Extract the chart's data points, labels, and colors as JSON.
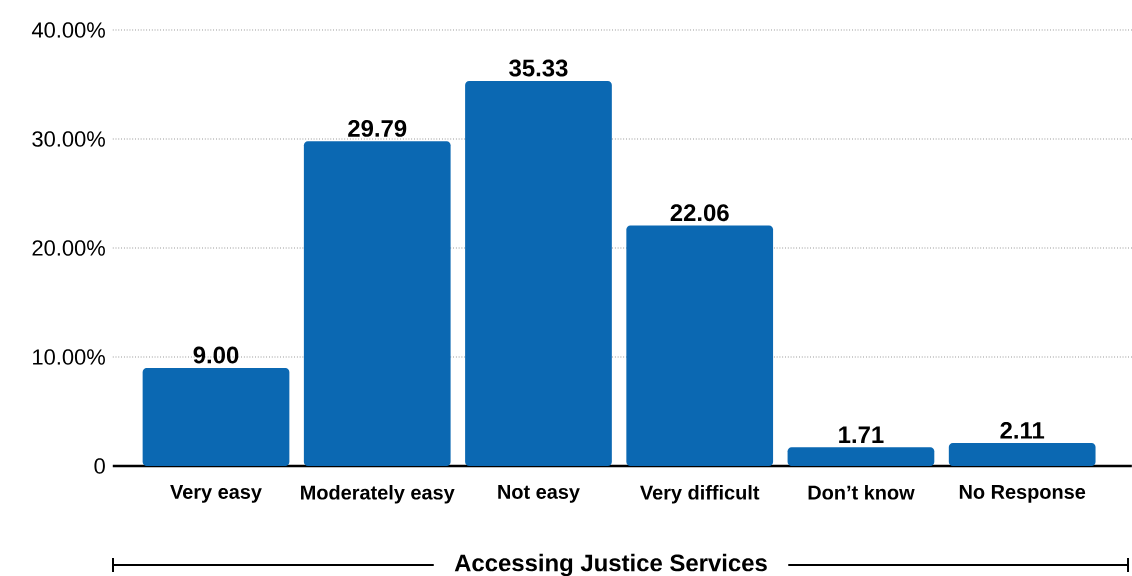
{
  "chart_data": {
    "type": "bar",
    "xlabel": "Accessing Justice Services",
    "categories": [
      "Very easy",
      "Moderately easy",
      "Not easy",
      "Very difficult",
      "Don’t know",
      "No Response"
    ],
    "values": [
      9.0,
      29.79,
      35.33,
      22.06,
      1.71,
      2.11
    ],
    "value_labels": [
      "9.00",
      "29.79",
      "35.33",
      "22.06",
      "1.71",
      "2.11"
    ],
    "color": "#0b68b2",
    "ylim": [
      0,
      40
    ],
    "yticks": [
      0,
      {
        "value": 10,
        "label": "10.00%"
      },
      {
        "value": 20,
        "label": "20.00%"
      },
      {
        "value": 30,
        "label": "30.00%"
      },
      {
        "value": 40,
        "label": "40.00%"
      }
    ],
    "grid": "y"
  }
}
